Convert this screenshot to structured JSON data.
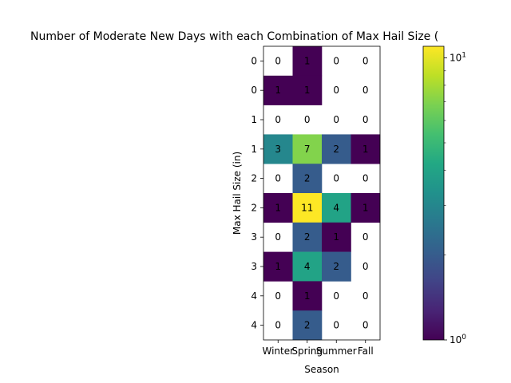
{
  "chart_data": {
    "type": "heatmap",
    "title": "Number of Moderate New Days with each Combination of Max Hail Size (",
    "xlabel": "Season",
    "ylabel": "Max Hail Size (in)",
    "x_categories": [
      "Winter",
      "Spring",
      "Summer",
      "Fall"
    ],
    "y_categories": [
      "0",
      "0",
      "1",
      "1",
      "2",
      "2",
      "3",
      "3",
      "4",
      "4"
    ],
    "values": [
      [
        0,
        1,
        0,
        0
      ],
      [
        1,
        1,
        0,
        0
      ],
      [
        0,
        0,
        0,
        0
      ],
      [
        3,
        7,
        2,
        1
      ],
      [
        0,
        2,
        0,
        0
      ],
      [
        1,
        11,
        4,
        1
      ],
      [
        0,
        2,
        1,
        0
      ],
      [
        1,
        4,
        2,
        0
      ],
      [
        0,
        1,
        0,
        0
      ],
      [
        0,
        2,
        0,
        0
      ]
    ],
    "zero_cells_blank": true,
    "color_scale": "log",
    "colormap": "viridis",
    "colorbar": {
      "min": 1,
      "max": 11,
      "major_tick_labels": [
        {
          "value": 1,
          "base": "10",
          "exp": "0"
        },
        {
          "value": 10,
          "base": "10",
          "exp": "1"
        }
      ],
      "minor_ticks": [
        2,
        3,
        4,
        5,
        6,
        7,
        8,
        9
      ]
    },
    "grid": false
  }
}
